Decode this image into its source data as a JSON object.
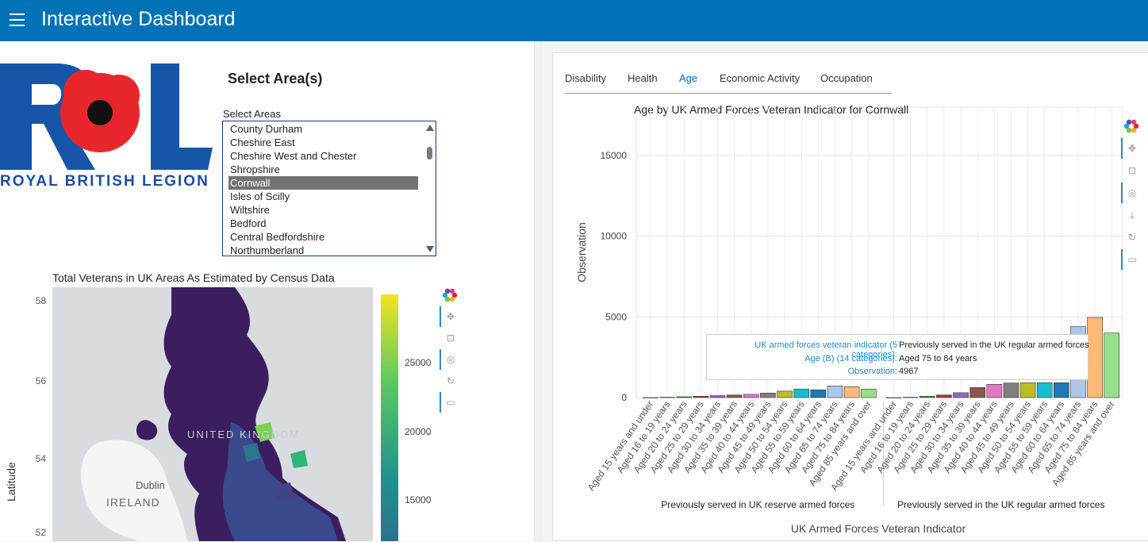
{
  "app": {
    "title": "Interactive Dashboard"
  },
  "logo": {
    "text": "ROYAL BRITISH LEGION",
    "alt": "RBL"
  },
  "area_select": {
    "title": "Select Area(s)",
    "label": "Select Areas",
    "options": [
      "County Durham",
      "Cheshire East",
      "Cheshire West and Chester",
      "Shropshire",
      "Cornwall",
      "Isles of Scilly",
      "Wiltshire",
      "Bedford",
      "Central Bedfordshire",
      "Northumberland"
    ],
    "selected": "Cornwall"
  },
  "map": {
    "title": "Total Veterans in UK Areas As Estimated by Census Data",
    "ylabel": "Latitude",
    "lat_ticks": [
      "58",
      "56",
      "54",
      "52"
    ],
    "labels": {
      "dublin": "Dublin",
      "ireland": "IRELAND",
      "uk": "UNITED KINGDOM"
    },
    "colorbar_ticks": [
      "25000",
      "20000",
      "15000"
    ]
  },
  "tabs": [
    {
      "label": "Disability",
      "active": false
    },
    {
      "label": "Health",
      "active": false
    },
    {
      "label": "Age",
      "active": true
    },
    {
      "label": "Economic Activity",
      "active": false
    },
    {
      "label": "Occupation",
      "active": false
    }
  ],
  "colors": {
    "accent": "#0072b5",
    "tab_active": "#0a66b0"
  },
  "toolbar_icons": [
    "bokeh-logo-icon",
    "pan-icon",
    "box-zoom-icon",
    "wheel-zoom-icon",
    "reset-icon",
    "hover-icon"
  ],
  "right_toolbar_icons": [
    "bokeh-logo-icon",
    "pan-icon",
    "box-zoom-icon",
    "wheel-zoom-icon",
    "save-icon",
    "reset-icon",
    "hover-icon"
  ],
  "tooltip": {
    "k1": "UK armed forces veteran indicator (5 categories):",
    "v1": "Previously served in the UK regular armed forces",
    "k2": "Age (B) (14 categories):",
    "v2": "Aged 75 to 84 years",
    "k3": "Observation:",
    "v3": "4967"
  },
  "chart_data": {
    "type": "bar",
    "title": "Age by UK Armed Forces Veteran Indicator for Cornwall",
    "xlabel": "UK Armed Forces Veteran Indicator",
    "ylabel": "Observation",
    "ylim": [
      0,
      18000
    ],
    "yticks": [
      0,
      5000,
      10000,
      15000
    ],
    "grid": true,
    "groups": [
      "Previously served in UK reserve armed forces",
      "Previously served in the UK regular armed forces"
    ],
    "categories": [
      "Aged 15 years and under",
      "Aged 16 to 19 years",
      "Aged 20 to 24 years",
      "Aged 25 to 29 years",
      "Aged 30 to 34 years",
      "Aged 35 to 39 years",
      "Aged 40 to 44 years",
      "Aged 45 to 49 years",
      "Aged 50 to 54 years",
      "Aged 55 to 59 years",
      "Aged 60 to 64 years",
      "Aged 65 to 74 years",
      "Aged 75 to 84 years",
      "Aged 85 years and over"
    ],
    "series": [
      {
        "values": [
          0,
          20,
          50,
          80,
          120,
          160,
          200,
          280,
          400,
          530,
          480,
          720,
          670,
          530
        ]
      },
      {
        "values": [
          0,
          20,
          80,
          160,
          300,
          620,
          820,
          900,
          920,
          920,
          920,
          4400,
          4967,
          4000
        ]
      }
    ],
    "bar_colors": [
      "#1f77b4",
      "#ff7f0e",
      "#2ca02c",
      "#d62728",
      "#9467bd",
      "#8c564b",
      "#e377c2",
      "#7f7f7f",
      "#bcbd22",
      "#17becf",
      "#1f77b4",
      "#aec7e8",
      "#ffbb78",
      "#98df8a"
    ],
    "legend": "none"
  }
}
